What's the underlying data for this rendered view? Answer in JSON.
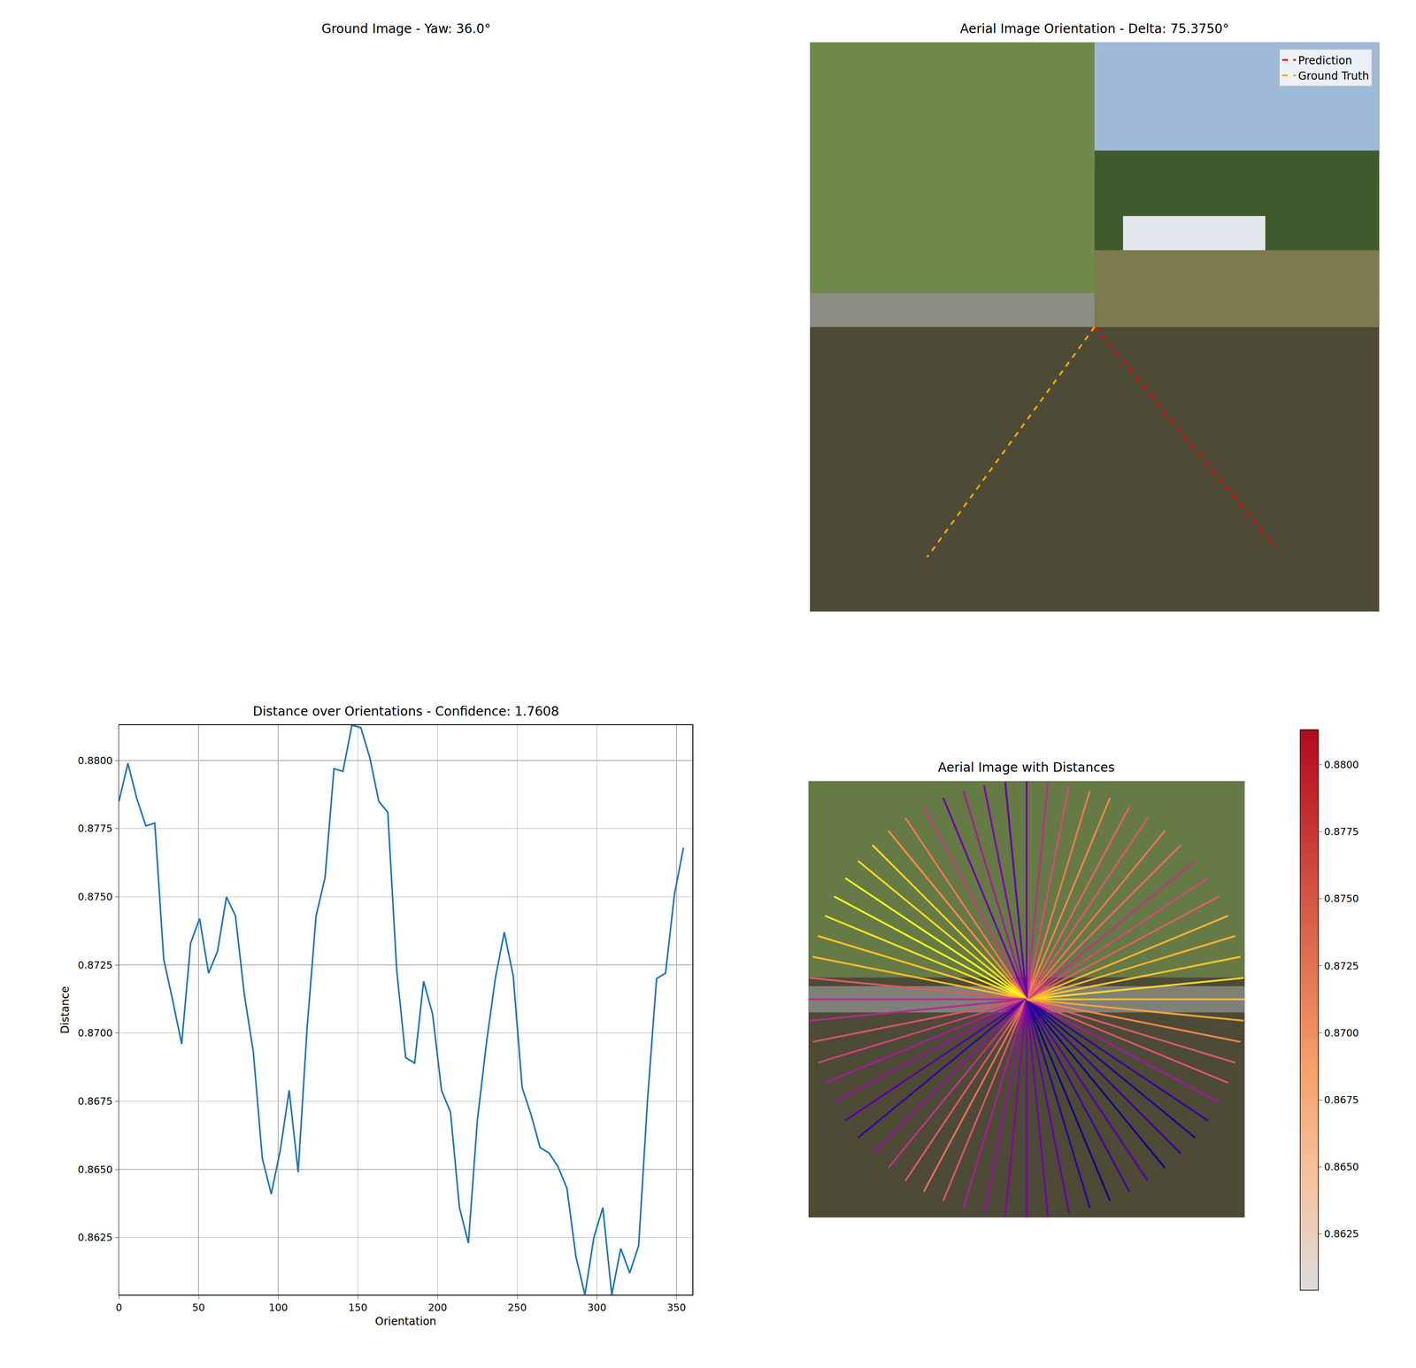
{
  "chart_data": [
    {
      "type": "image",
      "title": "Ground Image - Yaw: 36.0°"
    },
    {
      "type": "orientation",
      "title": "Aerial Image Orientation - Delta: 75.3750°",
      "legend": "upper right",
      "series": [
        {
          "name": "Prediction",
          "color": "#ff0000",
          "line_style": "dashed",
          "values": [
            309.375
          ]
        },
        {
          "name": "Ground Truth",
          "color": "#ffa500",
          "line_style": "dashed",
          "values": [
            234
          ]
        }
      ]
    },
    {
      "type": "line",
      "title": "Distance over Orientations - Confidence: 1.7608",
      "x_label": "Orientation",
      "y_label": "Distance",
      "color": "#1f77b4",
      "grid": true,
      "x": [
        0,
        5.625,
        11.25,
        16.875,
        22.5,
        28.125,
        33.75,
        39.375,
        45,
        50.625,
        56.25,
        61.875,
        67.5,
        73.125,
        78.75,
        84.375,
        90,
        95.625,
        101.25,
        106.875,
        112.5,
        118.125,
        123.75,
        129.375,
        135,
        140.625,
        146.25,
        151.875,
        157.5,
        163.125,
        168.75,
        174.375,
        180,
        185.625,
        191.25,
        196.875,
        202.5,
        208.125,
        213.75,
        219.375,
        225,
        230.625,
        236.25,
        241.875,
        247.5,
        253.125,
        258.75,
        264.375,
        270,
        275.625,
        281.25,
        286.875,
        292.5,
        298.125,
        303.75,
        309.375,
        315,
        320.625,
        326.25,
        331.875,
        337.5,
        343.125,
        348.75,
        354.375
      ],
      "values": [
        0.8785,
        0.8799,
        0.8786,
        0.8776,
        0.8777,
        0.8727,
        0.8712,
        0.8696,
        0.8733,
        0.8742,
        0.8722,
        0.873,
        0.875,
        0.8743,
        0.8714,
        0.8693,
        0.8654,
        0.8641,
        0.8657,
        0.8679,
        0.8649,
        0.8702,
        0.8743,
        0.8757,
        0.8797,
        0.8796,
        0.8813,
        0.8812,
        0.8801,
        0.8785,
        0.8781,
        0.8723,
        0.8691,
        0.8689,
        0.8719,
        0.8707,
        0.8679,
        0.8671,
        0.8636,
        0.8623,
        0.8668,
        0.8696,
        0.872,
        0.8737,
        0.8721,
        0.868,
        0.867,
        0.8658,
        0.8656,
        0.8651,
        0.8643,
        0.8618,
        0.8604,
        0.8625,
        0.8636,
        0.8604,
        0.8621,
        0.8612,
        0.8622,
        0.8676,
        0.872,
        0.8722,
        0.8751,
        0.8768
      ],
      "xlim": [
        0,
        360
      ],
      "ylim": [
        0.8604,
        0.8813
      ],
      "xticks": [
        0,
        50,
        100,
        150,
        200,
        250,
        300,
        350
      ],
      "yticks": [
        0.8625,
        {
          "value": 0.865,
          "label": "0.8650"
        },
        0.8675,
        {
          "value": 0.87,
          "label": "0.8700"
        },
        0.8725,
        {
          "value": 0.875,
          "label": "0.8750"
        },
        0.8775,
        {
          "value": 0.88,
          "label": "0.8800"
        }
      ]
    },
    {
      "type": "radial",
      "title": "Aerial Image with Distances",
      "x": [
        0,
        5.625,
        11.25,
        16.875,
        22.5,
        28.125,
        33.75,
        39.375,
        45,
        50.625,
        56.25,
        61.875,
        67.5,
        73.125,
        78.75,
        84.375,
        90,
        95.625,
        101.25,
        106.875,
        112.5,
        118.125,
        123.75,
        129.375,
        135,
        140.625,
        146.25,
        151.875,
        157.5,
        163.125,
        168.75,
        174.375,
        180,
        185.625,
        191.25,
        196.875,
        202.5,
        208.125,
        213.75,
        219.375,
        225,
        230.625,
        236.25,
        241.875,
        247.5,
        253.125,
        258.75,
        264.375,
        270,
        275.625,
        281.25,
        286.875,
        292.5,
        298.125,
        303.75,
        309.375,
        315,
        320.625,
        326.25,
        331.875,
        337.5,
        343.125,
        348.75,
        354.375
      ],
      "values": [
        0.8785,
        0.8799,
        0.8786,
        0.8776,
        0.8777,
        0.8727,
        0.8712,
        0.8696,
        0.8733,
        0.8742,
        0.8722,
        0.873,
        0.875,
        0.8743,
        0.8714,
        0.8693,
        0.8654,
        0.8641,
        0.8657,
        0.8679,
        0.8649,
        0.8702,
        0.8743,
        0.8757,
        0.8797,
        0.8796,
        0.8813,
        0.8812,
        0.8801,
        0.8785,
        0.8781,
        0.8723,
        0.8691,
        0.8689,
        0.8719,
        0.8707,
        0.8679,
        0.8671,
        0.8636,
        0.8623,
        0.8668,
        0.8696,
        0.872,
        0.8737,
        0.8721,
        0.868,
        0.867,
        0.8658,
        0.8656,
        0.8651,
        0.8643,
        0.8618,
        0.8604,
        0.8625,
        0.8636,
        0.8604,
        0.8621,
        0.8612,
        0.8622,
        0.8676,
        0.872,
        0.8722,
        0.8751,
        0.8768
      ],
      "colorbar_range": [
        0.8604,
        0.8813
      ],
      "colorbar_ticks": [
        0.8625,
        {
          "value": 0.865,
          "label": "0.8650"
        },
        0.8675,
        {
          "value": 0.87,
          "label": "0.8700"
        },
        0.8725,
        {
          "value": 0.875,
          "label": "0.8750"
        },
        0.8775,
        {
          "value": 0.88,
          "label": "0.8800"
        }
      ]
    }
  ]
}
